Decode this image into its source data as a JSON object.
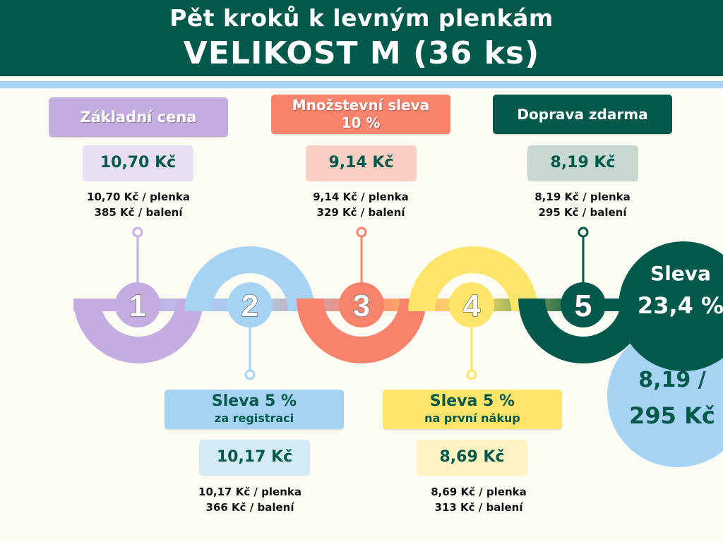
{
  "header": {
    "title": "Pět kroků k levným plenkám",
    "subtitle": "VELIKOST M (36 ks)"
  },
  "steps": [
    {
      "number": "1",
      "label": "Základní cena",
      "label_line2": "",
      "price": "10,70 Kč",
      "per_piece": "10,70 Kč / plenka",
      "per_pack": "385 Kč / balení",
      "color": "#c4aee1",
      "light": "#e8dff1"
    },
    {
      "number": "2",
      "label": "Sleva 5 %",
      "label_line2": "za registraci",
      "price": "10,17 Kč",
      "per_piece": "10,17 Kč / plenka",
      "per_pack": "366 Kč / balení",
      "color": "#a6d2f4",
      "light": "#d4ebf6"
    },
    {
      "number": "3",
      "label": "Množstevní sleva",
      "label_line2": "10 %",
      "price": "9,14 Kč",
      "per_piece": "9,14 Kč / plenka",
      "per_pack": "329 Kč / balení",
      "color": "#f7836c",
      "light": "#fad0c4"
    },
    {
      "number": "4",
      "label": "Sleva 5 %",
      "label_line2": "na první nákup",
      "price": "8,69 Kč",
      "per_piece": "8,69 Kč / plenka",
      "per_pack": "313 Kč / balení",
      "color": "#fee469",
      "light": "#fdf3c2"
    },
    {
      "number": "5",
      "label": "Doprava zdarma",
      "label_line2": "",
      "price": "8,19 Kč",
      "per_piece": "8,19 Kč / plenka",
      "per_pack": "295 Kč / balení",
      "color": "#00594a",
      "light": "#c6d8cf"
    }
  ],
  "summary": {
    "discount_label": "Sleva",
    "discount_value": "23,4 %",
    "final_line1": "8,19 /",
    "final_line2": "295 Kč"
  },
  "colors": {
    "dark_green": "#00594a",
    "background": "#fdfcf4"
  }
}
